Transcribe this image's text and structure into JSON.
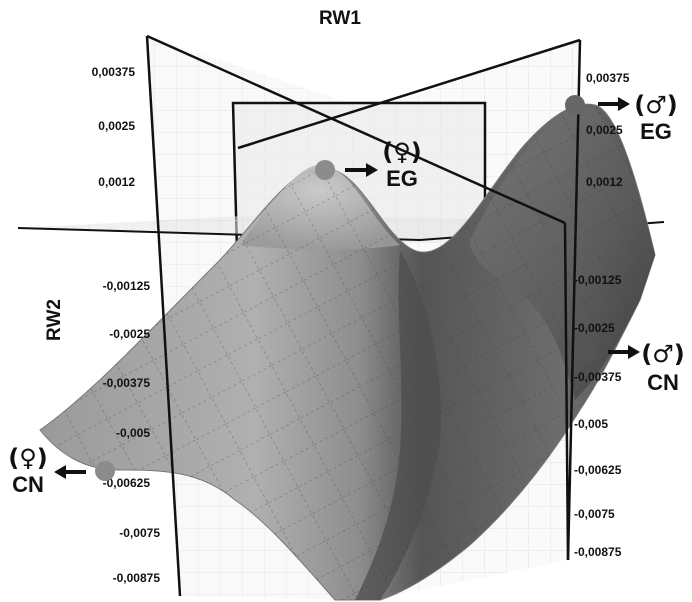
{
  "figure": {
    "x_axis_title": "RW1",
    "y_axis_title": "RW2",
    "left_ticks": [
      "0,00375",
      "0,0025",
      "0,0012",
      "-0,00125",
      "-0,0025",
      "-0,00375",
      "-0,005",
      "-0,00625",
      "-0,0075",
      "-0,00875"
    ],
    "right_ticks": [
      "0,00375",
      "0,0025",
      "0,0012",
      "-0,00125",
      "-0,0025",
      "-0,00375",
      "-0,005",
      "-0,00625",
      "-0,0075",
      "-0,00875"
    ],
    "markers": [
      {
        "id": "female-eg",
        "symbol": "(♀)",
        "group": "EG",
        "arrow": "right"
      },
      {
        "id": "male-eg",
        "symbol": "(♂)",
        "group": "EG",
        "arrow": "right"
      },
      {
        "id": "male-cn",
        "symbol": "(♂)",
        "group": "CN",
        "arrow": "right"
      },
      {
        "id": "female-cn",
        "symbol": "(♀)",
        "group": "CN",
        "arrow": "left"
      }
    ],
    "colors": {
      "surface_light": "#a9a9a9",
      "surface_mid": "#8a8a8a",
      "surface_dark": "#4a4a4a",
      "marker": "#8c8c8c",
      "marker_dark": "#555555",
      "plane": "#f1f1f1",
      "frame": "#111111"
    }
  }
}
